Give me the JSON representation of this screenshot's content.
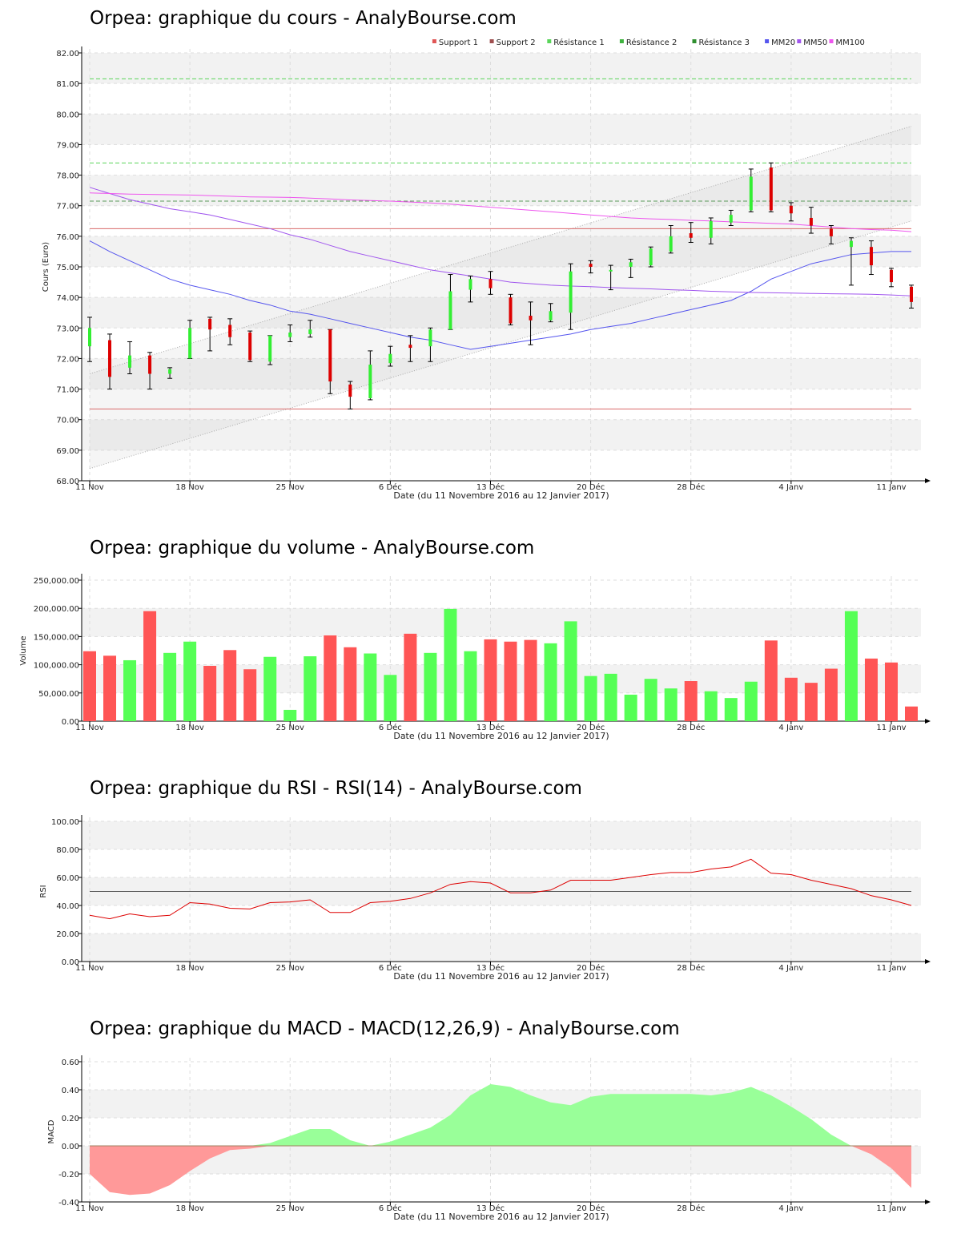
{
  "charts": {
    "price": {
      "title": "Orpea: graphique du cours - AnalyBourse.com",
      "ylabel": "Cours (Euro)",
      "xlabel": "Date (du 11 Novembre 2016 au 12 Janvier 2017)",
      "legend": [
        "Support 1",
        "Support 2",
        "Résistance 1",
        "Résistance 2",
        "Résistance 3",
        "MM20",
        "MM50",
        "MM100"
      ]
    },
    "volume": {
      "title": "Orpea: graphique du volume - AnalyBourse.com",
      "ylabel": "Volume",
      "xlabel": "Date (du 11 Novembre 2016 au 12 Janvier 2017)"
    },
    "rsi": {
      "title": "Orpea: graphique du RSI - RSI(14) - AnalyBourse.com",
      "ylabel": "RSI",
      "xlabel": "Date (du 11 Novembre 2016 au 12 Janvier 2017)"
    },
    "macd": {
      "title": "Orpea: graphique du MACD - MACD(12,26,9) - AnalyBourse.com",
      "ylabel": "MACD",
      "xlabel": "Date (du 11 Novembre 2016 au 12 Janvier 2017)"
    }
  },
  "chart_data": [
    {
      "type": "candlestick",
      "title": "Orpea: graphique du cours - AnalyBourse.com",
      "xlabel": "Date (du 11 Novembre 2016 au 12 Janvier 2017)",
      "ylabel": "Cours (Euro)",
      "ylim": [
        68,
        82
      ],
      "yticks": [
        "68.00",
        "69.00",
        "70.00",
        "71.00",
        "72.00",
        "73.00",
        "74.00",
        "75.00",
        "76.00",
        "77.00",
        "78.00",
        "79.00",
        "80.00",
        "81.00",
        "82.00"
      ],
      "xticks": [
        {
          "label": "11 Nov",
          "index": 0
        },
        {
          "label": "18 Nov",
          "index": 5
        },
        {
          "label": "25 Nov",
          "index": 10
        },
        {
          "label": "6 Déc",
          "index": 15
        },
        {
          "label": "13 Déc",
          "index": 20
        },
        {
          "label": "20 Déc",
          "index": 25
        },
        {
          "label": "28 Déc",
          "index": 30
        },
        {
          "label": "4 Janv",
          "index": 35
        },
        {
          "label": "11 Janv",
          "index": 40
        }
      ],
      "legend": [
        "Support 1",
        "Support 2",
        "Résistance 1",
        "Résistance 2",
        "Résistance 3",
        "MM20",
        "MM50",
        "MM100"
      ],
      "legend_colors": [
        "#e05555",
        "#a05050",
        "#5ad55a",
        "#3fb33f",
        "#2f8f2f",
        "#5555ee",
        "#a055ee",
        "#ee55ee"
      ],
      "candles": [
        {
          "o": 72.4,
          "c": 73.0,
          "h": 73.35,
          "l": 71.9
        },
        {
          "o": 72.6,
          "c": 71.4,
          "h": 72.8,
          "l": 71.0
        },
        {
          "o": 71.7,
          "c": 72.1,
          "h": 72.55,
          "l": 71.5
        },
        {
          "o": 72.1,
          "c": 71.5,
          "h": 72.2,
          "l": 71.0
        },
        {
          "o": 71.5,
          "c": 71.65,
          "h": 71.7,
          "l": 71.35
        },
        {
          "o": 72.0,
          "c": 73.0,
          "h": 73.25,
          "l": 72.0
        },
        {
          "o": 73.3,
          "c": 72.95,
          "h": 73.35,
          "l": 72.25
        },
        {
          "o": 73.1,
          "c": 72.7,
          "h": 73.3,
          "l": 72.45
        },
        {
          "o": 72.85,
          "c": 71.95,
          "h": 72.9,
          "l": 71.9
        },
        {
          "o": 71.9,
          "c": 72.75,
          "h": 72.75,
          "l": 71.8
        },
        {
          "o": 72.7,
          "c": 72.85,
          "h": 73.1,
          "l": 72.55
        },
        {
          "o": 72.8,
          "c": 72.95,
          "h": 73.25,
          "l": 72.7
        },
        {
          "o": 72.95,
          "c": 71.25,
          "h": 72.95,
          "l": 70.85
        },
        {
          "o": 71.15,
          "c": 70.75,
          "h": 71.25,
          "l": 70.35
        },
        {
          "o": 70.7,
          "c": 71.8,
          "h": 72.25,
          "l": 70.65
        },
        {
          "o": 71.85,
          "c": 72.15,
          "h": 72.4,
          "l": 71.75
        },
        {
          "o": 72.45,
          "c": 72.35,
          "h": 72.75,
          "l": 71.9
        },
        {
          "o": 72.4,
          "c": 72.95,
          "h": 73.0,
          "l": 71.9
        },
        {
          "o": 72.95,
          "c": 74.2,
          "h": 74.75,
          "l": 72.95
        },
        {
          "o": 74.25,
          "c": 74.6,
          "h": 74.7,
          "l": 73.85
        },
        {
          "o": 74.6,
          "c": 74.3,
          "h": 74.85,
          "l": 74.1
        },
        {
          "o": 74.0,
          "c": 73.15,
          "h": 74.1,
          "l": 73.1
        },
        {
          "o": 73.4,
          "c": 73.25,
          "h": 73.85,
          "l": 72.45
        },
        {
          "o": 73.25,
          "c": 73.55,
          "h": 73.8,
          "l": 73.2
        },
        {
          "o": 73.5,
          "c": 74.85,
          "h": 75.1,
          "l": 72.95
        },
        {
          "o": 75.1,
          "c": 75.0,
          "h": 75.2,
          "l": 74.8
        },
        {
          "o": 74.85,
          "c": 74.9,
          "h": 75.05,
          "l": 74.25
        },
        {
          "o": 75.0,
          "c": 75.15,
          "h": 75.25,
          "l": 74.65
        },
        {
          "o": 75.05,
          "c": 75.6,
          "h": 75.65,
          "l": 75.0
        },
        {
          "o": 75.5,
          "c": 76.0,
          "h": 76.35,
          "l": 75.45
        },
        {
          "o": 76.1,
          "c": 75.95,
          "h": 76.45,
          "l": 75.8
        },
        {
          "o": 75.95,
          "c": 76.5,
          "h": 76.6,
          "l": 75.75
        },
        {
          "o": 76.45,
          "c": 76.7,
          "h": 76.85,
          "l": 76.35
        },
        {
          "o": 76.85,
          "c": 77.95,
          "h": 78.2,
          "l": 76.8
        },
        {
          "o": 78.25,
          "c": 76.85,
          "h": 78.4,
          "l": 76.8
        },
        {
          "o": 77.0,
          "c": 76.75,
          "h": 77.1,
          "l": 76.5
        },
        {
          "o": 76.6,
          "c": 76.35,
          "h": 76.95,
          "l": 76.1
        },
        {
          "o": 76.25,
          "c": 76.0,
          "h": 76.35,
          "l": 75.75
        },
        {
          "o": 75.65,
          "c": 75.85,
          "h": 75.95,
          "l": 74.4
        },
        {
          "o": 75.65,
          "c": 75.05,
          "h": 75.85,
          "l": 74.75
        },
        {
          "o": 74.9,
          "c": 74.5,
          "h": 74.95,
          "l": 74.35
        },
        {
          "o": 74.35,
          "c": 73.85,
          "h": 74.4,
          "l": 73.65
        }
      ],
      "series": [
        {
          "name": "MM20",
          "color": "#5555ee",
          "values": [
            75.85,
            75.5,
            75.2,
            74.9,
            74.6,
            74.4,
            74.25,
            74.1,
            73.9,
            73.75,
            73.55,
            73.45,
            73.3,
            73.15,
            73.0,
            72.85,
            72.7,
            72.6,
            72.45,
            72.3,
            72.4,
            72.5,
            72.6,
            72.7,
            72.8,
            72.95,
            73.05,
            73.15,
            73.3,
            73.45,
            73.6,
            73.75,
            73.9,
            74.2,
            74.6,
            74.85,
            75.1,
            75.25,
            75.4,
            75.45,
            75.5,
            75.5
          ]
        },
        {
          "name": "MM50",
          "color": "#a055ee",
          "values": [
            77.6,
            77.4,
            77.2,
            77.05,
            76.9,
            76.8,
            76.7,
            76.55,
            76.4,
            76.25,
            76.05,
            75.9,
            75.7,
            75.5,
            75.35,
            75.2,
            75.05,
            74.9,
            74.8,
            74.7,
            74.6,
            74.5,
            74.45,
            74.4,
            74.37,
            74.35,
            74.32,
            74.3,
            74.28,
            74.25,
            74.23,
            74.2,
            74.18,
            74.16,
            74.15,
            74.14,
            74.13,
            74.12,
            74.11,
            74.1,
            74.08,
            74.05
          ]
        },
        {
          "name": "MM100",
          "color": "#ee55ee",
          "values": [
            77.42,
            77.4,
            77.38,
            77.37,
            77.36,
            77.35,
            77.33,
            77.31,
            77.29,
            77.28,
            77.27,
            77.25,
            77.22,
            77.19,
            77.17,
            77.15,
            77.12,
            77.09,
            77.05,
            77.0,
            76.95,
            76.9,
            76.85,
            76.8,
            76.75,
            76.7,
            76.65,
            76.6,
            76.57,
            76.55,
            76.52,
            76.5,
            76.47,
            76.45,
            76.42,
            76.4,
            76.35,
            76.3,
            76.25,
            76.22,
            76.2,
            76.15
          ]
        }
      ],
      "levels": [
        {
          "name": "Support 1",
          "value": 76.25,
          "style": "solid",
          "color": "#d96a6a"
        },
        {
          "name": "Support 2",
          "value": 70.35,
          "style": "solid",
          "color": "#d96a6a"
        },
        {
          "name": "Résistance 1",
          "value": 77.15,
          "style": "dashed",
          "color": "#5a9a5a"
        },
        {
          "name": "Résistance 2",
          "value": 78.4,
          "style": "dashed",
          "color": "#5ad55a"
        },
        {
          "name": "Résistance 3",
          "value": 81.15,
          "style": "dashed",
          "color": "#5ad55a"
        }
      ],
      "channel": {
        "lower_start": 68.4,
        "lower_end": 76.5,
        "upper_start": 71.5,
        "upper_end": 79.6
      }
    },
    {
      "type": "bar",
      "title": "Orpea: graphique du volume - AnalyBourse.com",
      "xlabel": "Date (du 11 Novembre 2016 au 12 Janvier 2017)",
      "ylabel": "Volume",
      "ylim": [
        0,
        250000
      ],
      "yticks": [
        "0.00",
        "50,000.00",
        "100,000.00",
        "150,000.00",
        "200,000.00",
        "250,000.00"
      ],
      "values": [
        124000,
        116000,
        108000,
        195000,
        121000,
        141000,
        98000,
        126000,
        92000,
        114000,
        20000,
        115000,
        152000,
        131000,
        120000,
        82000,
        155000,
        121000,
        199000,
        124000,
        145000,
        141000,
        144000,
        138000,
        177000,
        80000,
        84000,
        47000,
        75000,
        58000,
        71000,
        53000,
        41000,
        70000,
        143000,
        77000,
        68000,
        93000,
        195000,
        111000,
        104000,
        26000
      ],
      "directions": [
        "down",
        "down",
        "up",
        "down",
        "up",
        "up",
        "down",
        "down",
        "down",
        "up",
        "up",
        "up",
        "down",
        "down",
        "up",
        "up",
        "down",
        "up",
        "up",
        "up",
        "down",
        "down",
        "down",
        "up",
        "up",
        "up",
        "up",
        "up",
        "up",
        "up",
        "down",
        "up",
        "up",
        "up",
        "down",
        "down",
        "down",
        "down",
        "up",
        "down",
        "down",
        "down"
      ]
    },
    {
      "type": "line",
      "title": "Orpea: graphique du RSI - RSI(14) - AnalyBourse.com",
      "xlabel": "Date (du 11 Novembre 2016 au 12 Janvier 2017)",
      "ylabel": "RSI",
      "ylim": [
        0,
        100
      ],
      "yticks": [
        "0.00",
        "20.00",
        "40.00",
        "60.00",
        "80.00",
        "100.00"
      ],
      "reference": 50,
      "values": [
        33,
        30.5,
        34,
        32,
        33,
        42,
        41,
        38,
        37.5,
        42,
        42.5,
        44,
        35,
        35,
        42,
        43,
        45,
        49,
        55,
        57,
        56,
        49,
        49,
        51,
        58,
        58,
        58,
        60,
        62,
        63.5,
        63.5,
        66,
        67.5,
        73,
        63,
        62,
        58,
        55,
        52,
        47,
        44,
        40
      ]
    },
    {
      "type": "area",
      "title": "Orpea: graphique du MACD - MACD(12,26,9) - AnalyBourse.com",
      "xlabel": "Date (du 11 Novembre 2016 au 12 Janvier 2017)",
      "ylabel": "MACD",
      "ylim": [
        -0.4,
        0.6
      ],
      "yticks": [
        "-0.40",
        "-0.20",
        "0.00",
        "0.20",
        "0.40",
        "0.60"
      ],
      "values": [
        -0.2,
        -0.33,
        -0.35,
        -0.34,
        -0.28,
        -0.18,
        -0.09,
        -0.03,
        -0.02,
        0.02,
        0.07,
        0.12,
        0.12,
        0.04,
        0.0,
        0.03,
        0.08,
        0.13,
        0.22,
        0.36,
        0.44,
        0.42,
        0.36,
        0.31,
        0.29,
        0.35,
        0.37,
        0.37,
        0.37,
        0.37,
        0.37,
        0.36,
        0.38,
        0.42,
        0.36,
        0.28,
        0.19,
        0.08,
        0.0,
        -0.06,
        -0.16,
        -0.3
      ]
    }
  ]
}
